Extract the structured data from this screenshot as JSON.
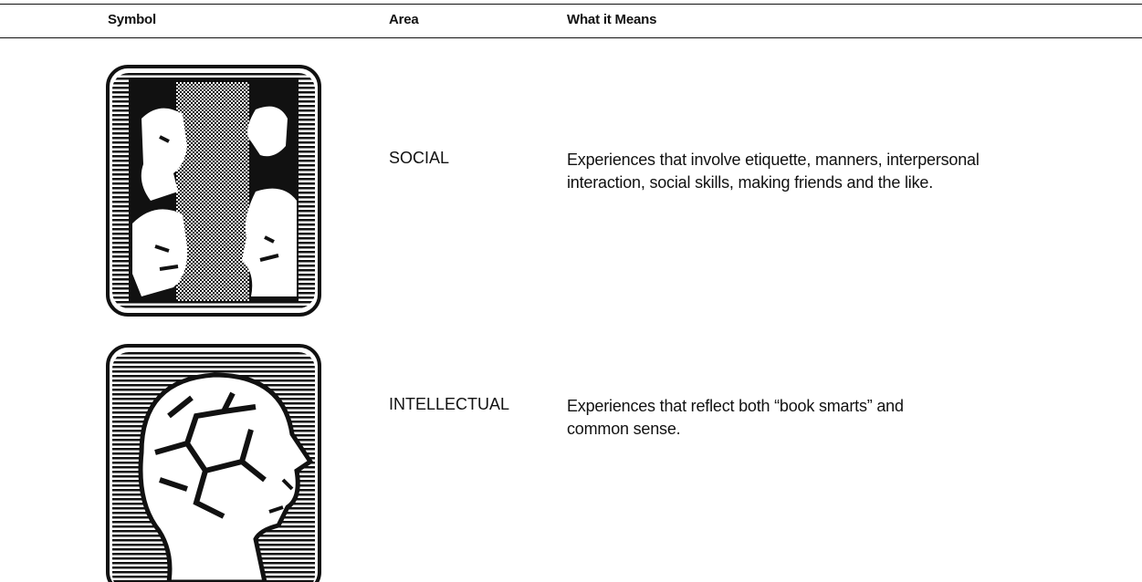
{
  "table": {
    "headers": [
      "Symbol",
      "Area",
      "What it Means"
    ],
    "rows": [
      {
        "area": "SOCIAL",
        "meaning": [
          "Experiences that involve etiquette, manners, interpersonal",
          "interaction, social skills, making friends and the like."
        ]
      },
      {
        "area": "INTELLECTUAL",
        "meaning": [
          "Experiences that reflect both “book smarts” and",
          "common sense."
        ]
      }
    ]
  }
}
